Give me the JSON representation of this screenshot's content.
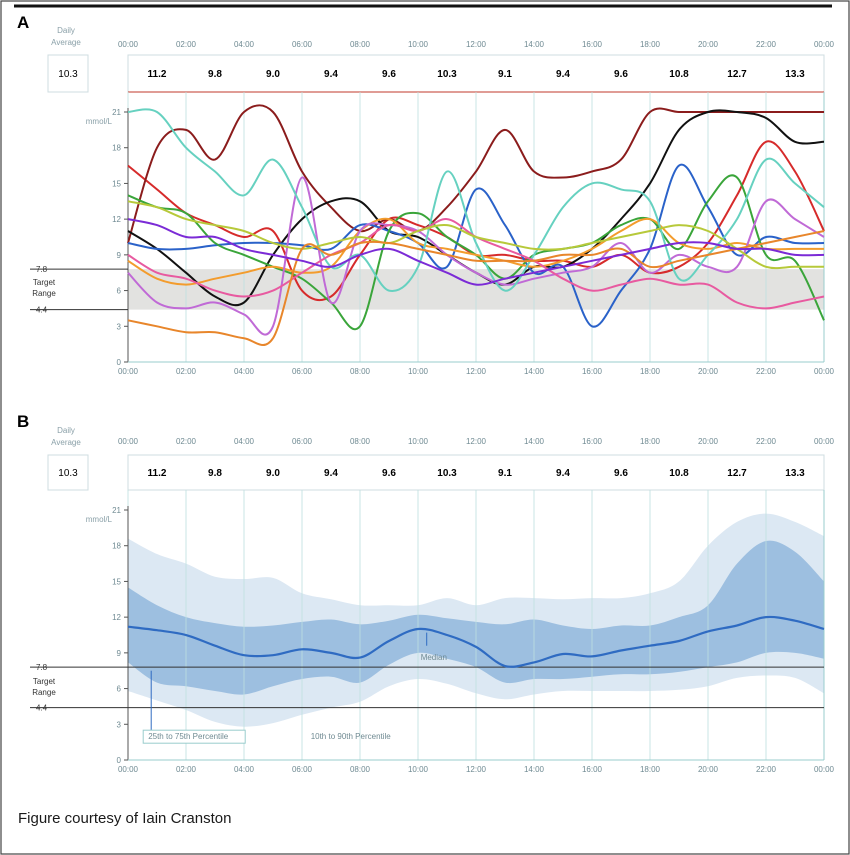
{
  "caption": "Figure courtesy of Iain Cranston",
  "colors": {
    "panel_A_lines": [
      "#d62b2b",
      "#8b1c1c",
      "#111111",
      "#2a62c9",
      "#3aa53a",
      "#f39c2d",
      "#c06ad6",
      "#66d1c0",
      "#e85aa0",
      "#b7c93a",
      "#e8862b",
      "#7b2bd6"
    ],
    "band_outer": "#dce8f3",
    "band_inner": "#9dbfe0",
    "median": "#2f6bc2",
    "target_band": "#e4e4e4",
    "grid": "#bde0df"
  },
  "chart_data": [
    {
      "panel": "A",
      "type": "line",
      "title": "",
      "ylabel": "mmol/L",
      "ylim": [
        0,
        21
      ],
      "yticks": [
        "0",
        "3",
        "6",
        "9",
        "12",
        "15",
        "18",
        "21"
      ],
      "xticks": [
        "00:00",
        "02:00",
        "04:00",
        "06:00",
        "08:00",
        "10:00",
        "12:00",
        "14:00",
        "16:00",
        "18:00",
        "20:00",
        "22:00",
        "00:00"
      ],
      "target_range": {
        "label": "Target Range",
        "low": 4.4,
        "high": 7.8,
        "low_label": "4.4",
        "high_label": "7.8"
      },
      "daily_average": {
        "label": "Daily Average",
        "value": "10.3"
      },
      "hourly_averages": [
        "11.2",
        "9.8",
        "9.0",
        "9.4",
        "9.6",
        "10.3",
        "9.1",
        "9.4",
        "9.6",
        "10.8",
        "12.7",
        "13.3"
      ],
      "x": [
        0,
        1,
        2,
        3,
        4,
        5,
        6,
        7,
        8,
        9,
        10,
        11,
        12,
        13,
        14,
        15,
        16,
        17,
        18,
        19,
        20,
        21,
        22,
        23,
        24
      ],
      "series": [
        {
          "values": [
            16.5,
            14.5,
            12.5,
            11.5,
            10.5,
            11,
            6,
            5.5,
            9,
            12,
            11.5,
            10.5,
            9,
            9,
            8.5,
            8.5,
            8,
            9,
            7.5,
            8,
            10,
            14,
            18.5,
            16,
            11
          ]
        },
        {
          "values": [
            10,
            18,
            19.5,
            17,
            21,
            21,
            16,
            13,
            11,
            12,
            11,
            13,
            16,
            19.5,
            16,
            15.5,
            16,
            17,
            21,
            21,
            21,
            21,
            21,
            21,
            21
          ]
        },
        {
          "values": [
            11,
            9.5,
            7.5,
            5.5,
            5,
            9,
            12,
            13.5,
            13.5,
            11,
            10.5,
            9,
            7.5,
            6.5,
            8,
            8,
            9.5,
            12,
            15,
            19.5,
            21,
            21,
            20.5,
            18.5,
            18.5
          ]
        },
        {
          "values": [
            10,
            9.5,
            9.5,
            9.8,
            10,
            10,
            9.8,
            9.5,
            11.5,
            11,
            10,
            8,
            14.5,
            11.5,
            7.5,
            8,
            3,
            6,
            9.5,
            16.5,
            13,
            9,
            10.5,
            10,
            10
          ]
        },
        {
          "values": [
            14,
            13,
            12.5,
            10,
            9,
            8,
            7,
            5,
            3,
            11,
            12.5,
            10.5,
            9,
            7,
            9,
            9.5,
            10,
            11.5,
            12,
            9.5,
            13.5,
            15.5,
            9,
            8.5,
            3.5
          ]
        },
        {
          "values": [
            8.5,
            7,
            6.5,
            7,
            7.5,
            8,
            7.5,
            8,
            11,
            12,
            10,
            9.5,
            9,
            8.5,
            8,
            8.5,
            9.5,
            11,
            12,
            10,
            9.5,
            10,
            9.5,
            9.5,
            9.5
          ]
        },
        {
          "values": [
            7.5,
            5,
            4.5,
            5,
            4,
            3,
            15.5,
            5,
            11,
            11.5,
            11,
            9,
            7.5,
            6.5,
            7,
            7.5,
            8,
            10,
            7.5,
            9,
            8,
            8,
            13.5,
            12,
            10.5
          ]
        },
        {
          "values": [
            21,
            21,
            18,
            16,
            14,
            17,
            13,
            8,
            9,
            6,
            8,
            16,
            10,
            6,
            9,
            13,
            15,
            14.5,
            13.5,
            7,
            9,
            12,
            17,
            15,
            13
          ]
        },
        {
          "values": [
            9,
            7.5,
            7,
            6,
            5.5,
            6,
            7.5,
            9,
            10,
            11.5,
            11,
            12,
            10.5,
            9.5,
            8.5,
            7,
            6,
            6.5,
            7,
            6.5,
            6.5,
            5,
            4.5,
            5,
            5.5
          ]
        },
        {
          "values": [
            13.5,
            13,
            12,
            11.5,
            11,
            10,
            9.5,
            10,
            10.5,
            10,
            11,
            11.5,
            10.5,
            10,
            9.5,
            9.5,
            10,
            10.5,
            11,
            11.5,
            11,
            9.5,
            8,
            8,
            8
          ]
        },
        {
          "values": [
            3.5,
            3,
            2.5,
            2.5,
            2,
            2,
            9.5,
            9,
            10,
            10,
            9.5,
            9,
            8.5,
            8.5,
            8.5,
            9,
            9,
            9.5,
            8,
            8.5,
            9,
            9.5,
            10,
            10.5,
            11
          ]
        },
        {
          "values": [
            12,
            11.5,
            10.5,
            10.5,
            9.5,
            9,
            8.5,
            8,
            9,
            9.5,
            8.5,
            7.5,
            6.5,
            7,
            7.5,
            8,
            8.5,
            9,
            9.5,
            10,
            10,
            9.5,
            9.5,
            9,
            9
          ]
        }
      ]
    },
    {
      "panel": "B",
      "type": "area",
      "title": "",
      "ylabel": "mmol/L",
      "ylim": [
        0,
        21
      ],
      "yticks": [
        "0",
        "3",
        "6",
        "9",
        "12",
        "15",
        "18",
        "21"
      ],
      "xticks": [
        "00:00",
        "02:00",
        "04:00",
        "06:00",
        "08:00",
        "10:00",
        "12:00",
        "14:00",
        "16:00",
        "18:00",
        "20:00",
        "22:00",
        "00:00"
      ],
      "target_range": {
        "label": "Target Range",
        "low": 4.4,
        "high": 7.8,
        "low_label": "4.4",
        "high_label": "7.8"
      },
      "daily_average": {
        "label": "Daily Average",
        "value": "10.3"
      },
      "hourly_averages": [
        "11.2",
        "9.8",
        "9.0",
        "9.4",
        "9.6",
        "10.3",
        "9.1",
        "9.4",
        "9.6",
        "10.8",
        "12.7",
        "13.3"
      ],
      "x": [
        0,
        1,
        2,
        3,
        4,
        5,
        6,
        7,
        8,
        9,
        10,
        11,
        12,
        13,
        14,
        15,
        16,
        17,
        18,
        19,
        20,
        21,
        22,
        23,
        24
      ],
      "median": [
        11.2,
        10.9,
        10.5,
        9.6,
        8.8,
        8.8,
        9.3,
        9,
        8.6,
        10,
        11,
        10.5,
        9.5,
        7.9,
        8.2,
        8.9,
        8.7,
        9.2,
        9.6,
        10,
        10.8,
        11.3,
        12,
        11.7,
        11
      ],
      "p25": [
        8.2,
        6.5,
        6.2,
        5.8,
        5.5,
        6.2,
        6.8,
        7,
        6.5,
        8,
        9,
        8.5,
        7.8,
        6.5,
        6.8,
        6.8,
        7,
        7.2,
        7.2,
        7.4,
        7.8,
        8.2,
        9,
        9,
        8.5
      ],
      "p75": [
        14.5,
        13,
        12,
        11.5,
        11.2,
        11.3,
        11.6,
        11.8,
        11.4,
        11.7,
        12.2,
        11.9,
        11.6,
        11.4,
        11.8,
        11.3,
        11,
        11.3,
        11.3,
        12,
        13,
        16.5,
        18.4,
        17.5,
        15
      ],
      "p10": [
        5.8,
        5,
        4.2,
        3.2,
        2.8,
        3.1,
        3.8,
        4.4,
        4.9,
        6.2,
        6.8,
        6.4,
        5.6,
        5.1,
        5.5,
        5.8,
        5.8,
        5.8,
        5.8,
        5.9,
        6.2,
        6.9,
        7.1,
        6.9,
        5.6
      ],
      "p90": [
        18.6,
        17.3,
        16.5,
        15.4,
        15.2,
        15.3,
        14,
        13.5,
        13,
        13,
        13,
        13.6,
        13,
        13.6,
        13.6,
        13.5,
        13.6,
        13.6,
        14,
        15,
        18,
        20,
        20.7,
        20,
        18.8
      ],
      "labels": {
        "median": "Median",
        "iqr": "25th to 75th Percentile",
        "idr": "10th to 90th Percentile"
      }
    }
  ]
}
